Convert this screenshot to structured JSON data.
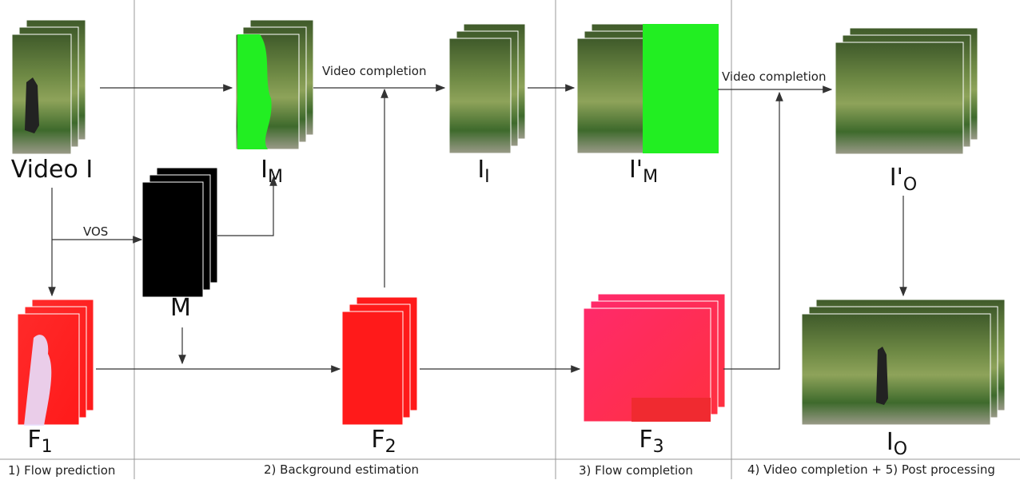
{
  "nodes": {
    "video": {
      "main": "Video I"
    },
    "i_m": {
      "main": "I",
      "sub": "M"
    },
    "i_i": {
      "main": "I",
      "sub": "I"
    },
    "i_prime_m": {
      "main": "I'",
      "sub": "M"
    },
    "i_prime_o": {
      "main": "I'",
      "sub": "O"
    },
    "i_o": {
      "main": "I",
      "sub": "O"
    },
    "m": {
      "main": "M"
    },
    "f1": {
      "main": "F",
      "sub": "1"
    },
    "f2": {
      "main": "F",
      "sub": "2"
    },
    "f3": {
      "main": "F",
      "sub": "3"
    }
  },
  "edges": {
    "vos": "VOS",
    "completion_1": "Video completion",
    "completion_2": "Video completion"
  },
  "stages": [
    "1) Flow prediction",
    "2) Background estimation",
    "3) Flow completion",
    "4) Video completion + 5) Post processing"
  ]
}
